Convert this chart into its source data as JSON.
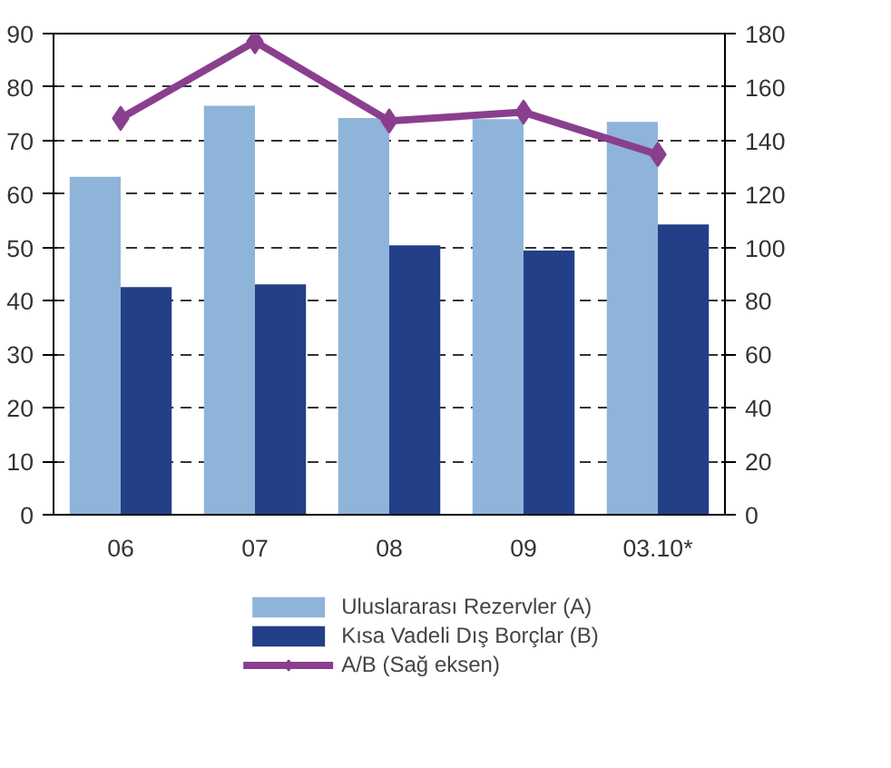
{
  "chart_data": {
    "type": "bar",
    "categories": [
      "06",
      "07",
      "08",
      "09",
      "03.10*"
    ],
    "series": [
      {
        "name": "Uluslararası Rezervler (A)",
        "color": "#8fb4da",
        "values": [
          63.2,
          76.5,
          74.2,
          74.0,
          73.5
        ]
      },
      {
        "name": "Kısa Vadeli Dış Borçlar (B)",
        "color": "#233f88",
        "values": [
          42.6,
          43.1,
          50.4,
          49.4,
          54.3
        ]
      },
      {
        "name": "A/B (Sağ eksen)",
        "color": "#8a3f8e",
        "type": "line",
        "axis": "y2",
        "marker": "diamond",
        "values": [
          148.3,
          177,
          147.3,
          150.6,
          134.8
        ]
      }
    ],
    "ylim": [
      0,
      90
    ],
    "yticks": [
      0,
      10,
      20,
      30,
      40,
      50,
      60,
      70,
      80,
      90
    ],
    "y2lim": [
      0,
      180
    ],
    "y2ticks": [
      0,
      20,
      40,
      60,
      80,
      100,
      120,
      140,
      160,
      180
    ],
    "grid": "y",
    "legend": "bottom"
  }
}
